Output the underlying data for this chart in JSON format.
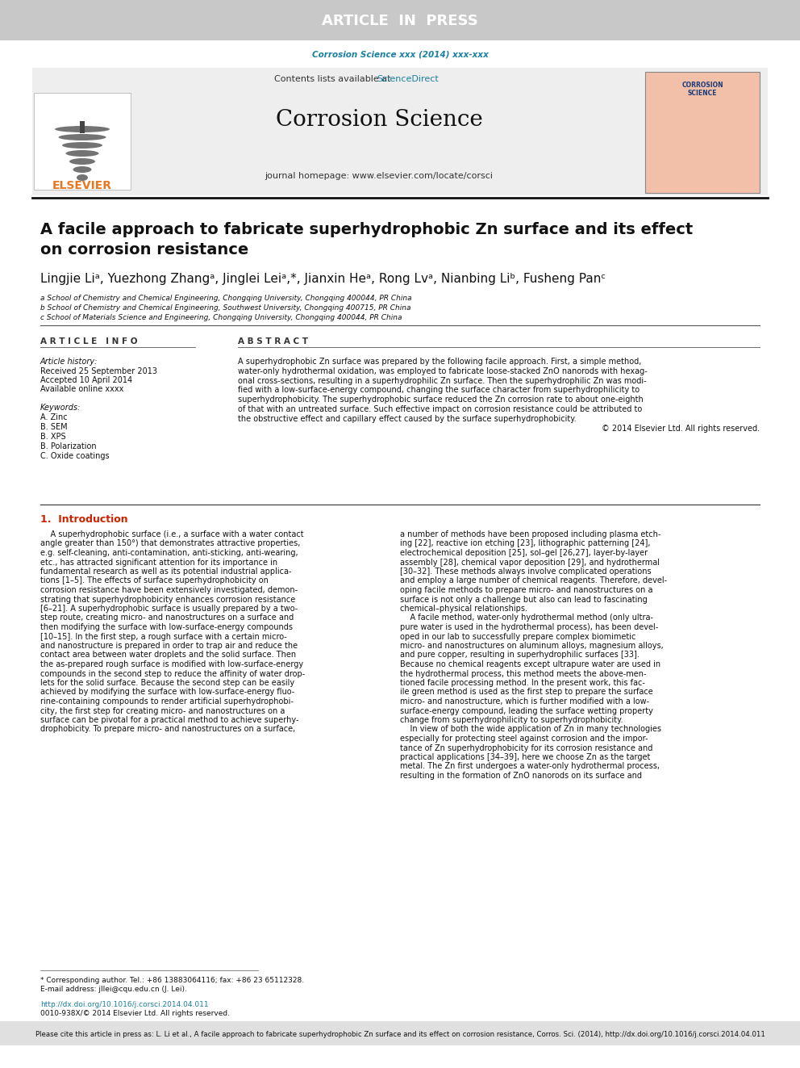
{
  "article_in_press_text": "ARTICLE  IN  PRESS",
  "article_in_press_bg": "#c8c8c8",
  "article_in_press_color": "#ffffff",
  "journal_ref": "Corrosion Science xxx (2014) xxx-xxx",
  "journal_ref_color": "#1a7fa0",
  "contents_text": "Contents lists available at ",
  "sciencedirect_text": "ScienceDirect",
  "sciencedirect_color": "#1a7fa0",
  "journal_name": "Corrosion Science",
  "journal_homepage": "journal homepage: www.elsevier.com/locate/corsci",
  "header_bg": "#eeeeee",
  "paper_title_line1": "A facile approach to fabricate superhydrophobic Zn surface and its effect",
  "paper_title_line2": "on corrosion resistance",
  "affil_a": "a School of Chemistry and Chemical Engineering, Chongqing University, Chongqing 400044, PR China",
  "affil_b": "b School of Chemistry and Chemical Engineering, Southwest University, Chongqing 400715, PR China",
  "affil_c": "c School of Materials Science and Engineering, Chongqing University, Chongqing 400044, PR China",
  "article_info_header": "A R T I C L E   I N F O",
  "abstract_header": "A B S T R A C T",
  "article_history": "Article history:",
  "received": "Received 25 September 2013",
  "accepted": "Accepted 10 April 2014",
  "available": "Available online xxxx",
  "keywords_header": "Keywords:",
  "keywords": [
    "A. Zinc",
    "B. SEM",
    "B. XPS",
    "B. Polarization",
    "C. Oxide coatings"
  ],
  "intro_header": "1.  Introduction",
  "intro_color": "#cc2200",
  "footnote_star": "* Corresponding author. Tel.: +86 13883064116; fax: +86 23 65112328.",
  "footnote_email": "E-mail address: jllei@cqu.edu.cn (J. Lei).",
  "doi_text": "http://dx.doi.org/10.1016/j.corsci.2014.04.011",
  "doi_color": "#1a7fa0",
  "copyright_text": "0010-938X/© 2014 Elsevier Ltd. All rights reserved.",
  "bottom_bar_text": "Please cite this article in press as: L. Li et al., A facile approach to fabricate superhydrophobic Zn surface and its effect on corrosion resistance, Corros. Sci. (2014), http://dx.doi.org/10.1016/j.corsci.2014.04.011",
  "bottom_bar_bg": "#e0e0e0",
  "page_bg": "#ffffff",
  "text_color": "#000000"
}
